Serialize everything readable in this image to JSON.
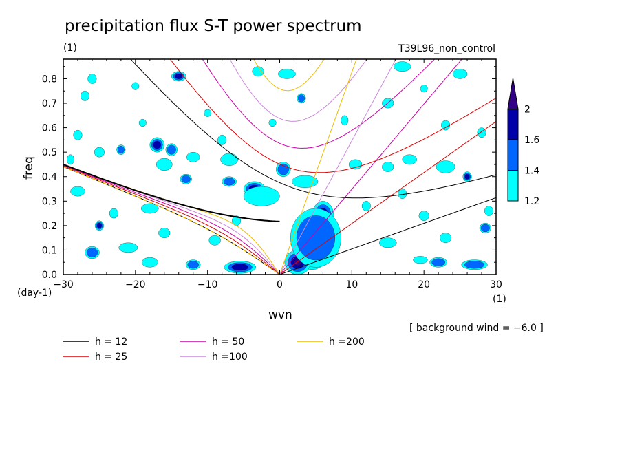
{
  "chart_data": {
    "type": "contour",
    "title": "precipitation flux S-T power spectrum",
    "subtitle_left": "(1)",
    "subtitle_right": "T39L96_non_control",
    "xlabel": "wvn",
    "ylabel": "freq",
    "xunit": "(1)",
    "yunit": "(day-1)",
    "xlim": [
      -30,
      30
    ],
    "ylim": [
      0,
      0.88
    ],
    "xticks": [
      -30,
      -20,
      -10,
      0,
      10,
      20,
      30
    ],
    "xtick_labels": [
      "−30",
      "−20",
      "−10",
      "0",
      "10",
      "20",
      "30"
    ],
    "yticks": [
      0,
      0.1,
      0.2,
      0.3,
      0.4,
      0.5,
      0.6,
      0.7,
      0.8
    ],
    "ytick_labels": [
      "0.0",
      "0.1",
      "0.2",
      "0.3",
      "0.4",
      "0.5",
      "0.6",
      "0.7",
      "0.8"
    ],
    "background_wind": -6.0,
    "annotation": "[ background wind = −6.0 ]",
    "colorbar": {
      "levels": [
        1.2,
        1.4,
        1.6,
        2
      ],
      "labels": [
        "1.2",
        "1.4",
        "1.6",
        "2"
      ],
      "colors": [
        "#00ffff",
        "#0066ff",
        "#0000aa",
        "#330088"
      ]
    },
    "dispersion_curves": [
      {
        "label": "h = 12",
        "color": "#000000"
      },
      {
        "label": "h = 25",
        "color": "#dd0000"
      },
      {
        "label": "h = 50",
        "color": "#cc00aa"
      },
      {
        "label": "h =100",
        "color": "#cc88dd"
      },
      {
        "label": "h =200",
        "color": "#eebb00"
      }
    ],
    "contour_blobs": [
      {
        "x": 4.5,
        "y": 0.12,
        "rx": 2.6,
        "ry": 0.1,
        "level": 3
      },
      {
        "x": 2.5,
        "y": 0.05,
        "rx": 1.8,
        "ry": 0.05,
        "level": 3
      },
      {
        "x": 6.0,
        "y": 0.24,
        "rx": 1.5,
        "ry": 0.06,
        "level": 3
      },
      {
        "x": 5.0,
        "y": 0.15,
        "rx": 3.5,
        "ry": 0.12,
        "level": 1
      },
      {
        "x": -5.5,
        "y": 0.03,
        "rx": 2.2,
        "ry": 0.025,
        "level": 2
      },
      {
        "x": -3.5,
        "y": 0.35,
        "rx": 1.5,
        "ry": 0.03,
        "level": 2
      },
      {
        "x": -14,
        "y": 0.81,
        "rx": 1.0,
        "ry": 0.02,
        "level": 2
      },
      {
        "x": -26,
        "y": 0.8,
        "rx": 0.6,
        "ry": 0.02,
        "level": 0
      },
      {
        "x": -3,
        "y": 0.83,
        "rx": 0.8,
        "ry": 0.02,
        "level": 0
      },
      {
        "x": 1,
        "y": 0.82,
        "rx": 1.2,
        "ry": 0.02,
        "level": 0
      },
      {
        "x": 17,
        "y": 0.85,
        "rx": 1.2,
        "ry": 0.02,
        "level": 0
      },
      {
        "x": 25,
        "y": 0.82,
        "rx": 1.0,
        "ry": 0.02,
        "level": 0
      },
      {
        "x": -27,
        "y": 0.73,
        "rx": 0.6,
        "ry": 0.02,
        "level": 0
      },
      {
        "x": -20,
        "y": 0.77,
        "rx": 0.5,
        "ry": 0.015,
        "level": 0
      },
      {
        "x": 15,
        "y": 0.7,
        "rx": 0.8,
        "ry": 0.02,
        "level": 0
      },
      {
        "x": -28,
        "y": 0.57,
        "rx": 0.6,
        "ry": 0.02,
        "level": 0
      },
      {
        "x": -17,
        "y": 0.53,
        "rx": 1.0,
        "ry": 0.03,
        "level": 2
      },
      {
        "x": -15,
        "y": 0.51,
        "rx": 0.8,
        "ry": 0.025,
        "level": 1
      },
      {
        "x": -8,
        "y": 0.55,
        "rx": 0.6,
        "ry": 0.02,
        "level": 0
      },
      {
        "x": 3,
        "y": 0.72,
        "rx": 0.6,
        "ry": 0.02,
        "level": 1
      },
      {
        "x": -25,
        "y": 0.5,
        "rx": 0.7,
        "ry": 0.02,
        "level": 0
      },
      {
        "x": -22,
        "y": 0.51,
        "rx": 0.6,
        "ry": 0.02,
        "level": 1
      },
      {
        "x": -16,
        "y": 0.45,
        "rx": 1.1,
        "ry": 0.025,
        "level": 0
      },
      {
        "x": -12,
        "y": 0.48,
        "rx": 0.9,
        "ry": 0.02,
        "level": 0
      },
      {
        "x": -7,
        "y": 0.47,
        "rx": 1.2,
        "ry": 0.025,
        "level": 0
      },
      {
        "x": 0.5,
        "y": 0.43,
        "rx": 1.0,
        "ry": 0.03,
        "level": 1
      },
      {
        "x": 3.5,
        "y": 0.38,
        "rx": 1.8,
        "ry": 0.025,
        "level": 0
      },
      {
        "x": 10.5,
        "y": 0.45,
        "rx": 0.9,
        "ry": 0.02,
        "level": 0
      },
      {
        "x": 15,
        "y": 0.44,
        "rx": 0.8,
        "ry": 0.02,
        "level": 0
      },
      {
        "x": 18,
        "y": 0.47,
        "rx": 1.0,
        "ry": 0.02,
        "level": 0
      },
      {
        "x": 23,
        "y": 0.44,
        "rx": 1.3,
        "ry": 0.025,
        "level": 0
      },
      {
        "x": 26,
        "y": 0.4,
        "rx": 0.6,
        "ry": 0.02,
        "level": 2
      },
      {
        "x": -13,
        "y": 0.39,
        "rx": 0.8,
        "ry": 0.02,
        "level": 1
      },
      {
        "x": -7,
        "y": 0.38,
        "rx": 1.0,
        "ry": 0.02,
        "level": 1
      },
      {
        "x": -2.5,
        "y": 0.32,
        "rx": 2.5,
        "ry": 0.04,
        "level": 0
      },
      {
        "x": -28,
        "y": 0.34,
        "rx": 1.0,
        "ry": 0.02,
        "level": 0
      },
      {
        "x": -18,
        "y": 0.27,
        "rx": 1.2,
        "ry": 0.02,
        "level": 0
      },
      {
        "x": -25,
        "y": 0.2,
        "rx": 0.6,
        "ry": 0.02,
        "level": 2
      },
      {
        "x": -16,
        "y": 0.17,
        "rx": 0.8,
        "ry": 0.02,
        "level": 0
      },
      {
        "x": -21,
        "y": 0.11,
        "rx": 1.3,
        "ry": 0.02,
        "level": 0
      },
      {
        "x": -26,
        "y": 0.09,
        "rx": 1.0,
        "ry": 0.025,
        "level": 1
      },
      {
        "x": -18,
        "y": 0.05,
        "rx": 1.1,
        "ry": 0.02,
        "level": 0
      },
      {
        "x": -12,
        "y": 0.04,
        "rx": 1.0,
        "ry": 0.02,
        "level": 1
      },
      {
        "x": -9,
        "y": 0.14,
        "rx": 0.8,
        "ry": 0.02,
        "level": 0
      },
      {
        "x": 15,
        "y": 0.13,
        "rx": 1.2,
        "ry": 0.02,
        "level": 0
      },
      {
        "x": 23,
        "y": 0.15,
        "rx": 0.8,
        "ry": 0.02,
        "level": 0
      },
      {
        "x": 28.5,
        "y": 0.19,
        "rx": 0.8,
        "ry": 0.02,
        "level": 1
      },
      {
        "x": 22,
        "y": 0.05,
        "rx": 1.2,
        "ry": 0.02,
        "level": 1
      },
      {
        "x": 27,
        "y": 0.04,
        "rx": 1.8,
        "ry": 0.02,
        "level": 1
      },
      {
        "x": 19.5,
        "y": 0.06,
        "rx": 1.0,
        "ry": 0.015,
        "level": 0
      },
      {
        "x": 12,
        "y": 0.28,
        "rx": 0.6,
        "ry": 0.02,
        "level": 0
      },
      {
        "x": 17,
        "y": 0.33,
        "rx": 0.6,
        "ry": 0.02,
        "level": 0
      },
      {
        "x": 20,
        "y": 0.24,
        "rx": 0.7,
        "ry": 0.02,
        "level": 0
      },
      {
        "x": 29,
        "y": 0.26,
        "rx": 0.6,
        "ry": 0.02,
        "level": 0
      },
      {
        "x": -29,
        "y": 0.47,
        "rx": 0.5,
        "ry": 0.02,
        "level": 0
      },
      {
        "x": 28,
        "y": 0.58,
        "rx": 0.6,
        "ry": 0.02,
        "level": 0
      },
      {
        "x": 23,
        "y": 0.61,
        "rx": 0.6,
        "ry": 0.02,
        "level": 0
      },
      {
        "x": 9,
        "y": 0.63,
        "rx": 0.5,
        "ry": 0.02,
        "level": 0
      },
      {
        "x": -10,
        "y": 0.66,
        "rx": 0.5,
        "ry": 0.015,
        "level": 0
      },
      {
        "x": 20,
        "y": 0.76,
        "rx": 0.5,
        "ry": 0.015,
        "level": 0
      },
      {
        "x": -19,
        "y": 0.62,
        "rx": 0.5,
        "ry": 0.015,
        "level": 0
      },
      {
        "x": -1,
        "y": 0.62,
        "rx": 0.5,
        "ry": 0.015,
        "level": 0
      },
      {
        "x": -6,
        "y": 0.22,
        "rx": 0.6,
        "ry": 0.02,
        "level": 0
      },
      {
        "x": -23,
        "y": 0.25,
        "rx": 0.6,
        "ry": 0.02,
        "level": 0
      }
    ]
  }
}
